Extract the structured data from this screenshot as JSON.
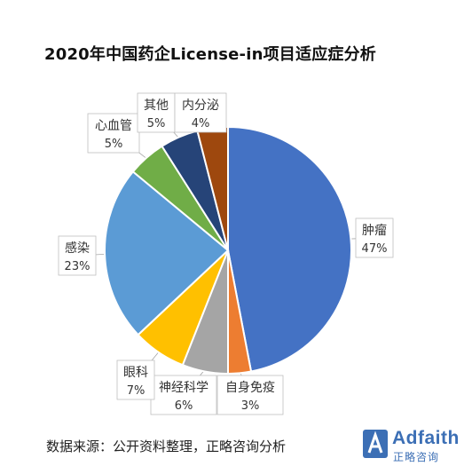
{
  "chart_data": {
    "type": "pie",
    "title": "2020年中国药企License-in项目适应症分析",
    "slices": [
      {
        "label": "肿瘤",
        "value": 47,
        "value_label": "47%",
        "color": "#4472c4"
      },
      {
        "label": "自身免疫",
        "value": 3,
        "value_label": "3%",
        "color": "#ed7d31"
      },
      {
        "label": "神经科学",
        "value": 6,
        "value_label": "6%",
        "color": "#a5a5a5"
      },
      {
        "label": "眼科",
        "value": 7,
        "value_label": "7%",
        "color": "#ffc000"
      },
      {
        "label": "感染",
        "value": 23,
        "value_label": "23%",
        "color": "#5b9bd5"
      },
      {
        "label": "心血管",
        "value": 5,
        "value_label": "5%",
        "color": "#70ad47"
      },
      {
        "label": "其他",
        "value": 5,
        "value_label": "5%",
        "color": "#264478"
      },
      {
        "label": "内分泌",
        "value": 4,
        "value_label": "4%",
        "color": "#9e480e"
      }
    ]
  },
  "footer": {
    "source": "数据来源：公开资料整理，正略咨询分析",
    "logo_name": "Adfaith",
    "logo_sub": "正略咨询"
  }
}
